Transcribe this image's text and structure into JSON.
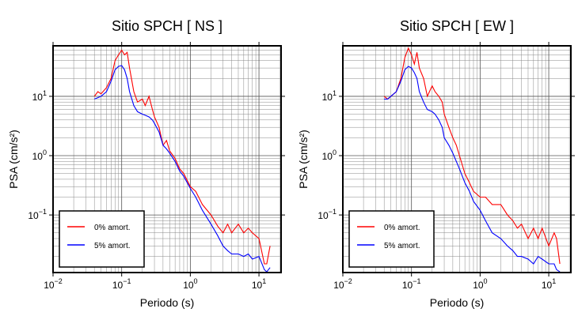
{
  "chart_data": [
    {
      "type": "line",
      "title": "Sitio SPCH [ NS ]",
      "x_label": "Periodo (s)",
      "y_label": "PSA (cm/s²)",
      "log_x": true,
      "log_y": true,
      "grid": true,
      "legend": "lower left",
      "xlim": [
        0.01,
        21
      ],
      "ylim": [
        0.0107,
        71
      ],
      "xticks": [
        {
          "value": 0.01,
          "label": "10",
          "exponent": "−2"
        },
        {
          "value": 0.1,
          "label": "10",
          "exponent": "−1"
        },
        {
          "value": 1,
          "label": "10",
          "exponent": "0"
        },
        {
          "value": 10,
          "label": "10",
          "exponent": "1"
        }
      ],
      "yticks": [
        {
          "value": 0.1,
          "label": "10",
          "exponent": "−1"
        },
        {
          "value": 1,
          "label": "10",
          "exponent": "0"
        },
        {
          "value": 10,
          "label": "10",
          "exponent": "1"
        }
      ],
      "x": [
        0.04,
        0.045,
        0.05,
        0.06,
        0.07,
        0.08,
        0.09,
        0.1,
        0.11,
        0.12,
        0.13,
        0.15,
        0.17,
        0.2,
        0.22,
        0.25,
        0.28,
        0.3,
        0.35,
        0.4,
        0.45,
        0.5,
        0.6,
        0.7,
        0.8,
        1.0,
        1.2,
        1.5,
        2,
        2.5,
        3,
        3.5,
        4,
        5,
        6,
        7,
        8,
        10,
        12,
        13,
        14.5
      ],
      "series": [
        {
          "name": "0% amort.",
          "color": "#ff0000",
          "values": [
            10,
            12,
            11,
            14,
            20,
            40,
            50,
            60,
            50,
            55,
            30,
            12,
            8,
            9,
            7,
            10,
            6,
            4.5,
            3,
            1.5,
            1.8,
            1.2,
            0.9,
            0.6,
            0.5,
            0.3,
            0.25,
            0.15,
            0.1,
            0.065,
            0.05,
            0.07,
            0.05,
            0.07,
            0.05,
            0.06,
            0.05,
            0.04,
            0.015,
            0.015,
            0.03
          ]
        },
        {
          "name": "5% amort.",
          "color": "#0000ff",
          "values": [
            9,
            9.5,
            10,
            12,
            18,
            28,
            32,
            33,
            28,
            20,
            12,
            7,
            5.5,
            5,
            4.8,
            4.5,
            4,
            3.5,
            2.5,
            1.5,
            1.3,
            1.1,
            0.8,
            0.55,
            0.45,
            0.28,
            0.2,
            0.12,
            0.07,
            0.045,
            0.03,
            0.025,
            0.022,
            0.022,
            0.02,
            0.022,
            0.018,
            0.02,
            0.012,
            0.011,
            0.013
          ]
        }
      ]
    },
    {
      "type": "line",
      "title": "Sitio SPCH [ EW ]",
      "x_label": "Periodo (s)",
      "y_label": "PSA (cm/s²)",
      "log_x": true,
      "log_y": true,
      "grid": true,
      "legend": "lower left",
      "xlim": [
        0.01,
        21
      ],
      "ylim": [
        0.0107,
        71
      ],
      "xticks": [
        {
          "value": 0.01,
          "label": "10",
          "exponent": "−2"
        },
        {
          "value": 0.1,
          "label": "10",
          "exponent": "−1"
        },
        {
          "value": 1,
          "label": "10",
          "exponent": "0"
        },
        {
          "value": 10,
          "label": "10",
          "exponent": "1"
        }
      ],
      "yticks": [
        {
          "value": 0.1,
          "label": "10",
          "exponent": "−1"
        },
        {
          "value": 1,
          "label": "10",
          "exponent": "0"
        },
        {
          "value": 10,
          "label": "10",
          "exponent": "1"
        }
      ],
      "x": [
        0.04,
        0.045,
        0.05,
        0.06,
        0.07,
        0.08,
        0.09,
        0.1,
        0.11,
        0.12,
        0.13,
        0.15,
        0.17,
        0.2,
        0.22,
        0.25,
        0.28,
        0.3,
        0.35,
        0.4,
        0.45,
        0.5,
        0.6,
        0.7,
        0.8,
        1.0,
        1.2,
        1.5,
        2,
        2.5,
        3,
        3.5,
        4,
        5,
        6,
        7,
        8,
        10,
        12,
        13,
        14.5
      ],
      "series": [
        {
          "name": "0% amort.",
          "color": "#ff0000",
          "values": [
            10,
            9,
            10,
            12,
            20,
            45,
            65,
            50,
            35,
            55,
            30,
            20,
            10,
            15,
            12,
            10,
            8,
            5,
            3,
            2,
            1.5,
            1,
            0.5,
            0.35,
            0.25,
            0.2,
            0.2,
            0.15,
            0.15,
            0.1,
            0.08,
            0.06,
            0.07,
            0.04,
            0.06,
            0.04,
            0.06,
            0.03,
            0.05,
            0.04,
            0.015
          ]
        },
        {
          "name": "5% amort.",
          "color": "#0000ff",
          "values": [
            9,
            9,
            10,
            12,
            18,
            28,
            32,
            30,
            25,
            20,
            12,
            8,
            6,
            5.5,
            5,
            4,
            3,
            2,
            1.5,
            1.1,
            0.8,
            0.6,
            0.35,
            0.25,
            0.17,
            0.12,
            0.08,
            0.05,
            0.04,
            0.03,
            0.025,
            0.02,
            0.02,
            0.018,
            0.015,
            0.02,
            0.018,
            0.015,
            0.015,
            0.012,
            0.011
          ]
        }
      ]
    }
  ]
}
